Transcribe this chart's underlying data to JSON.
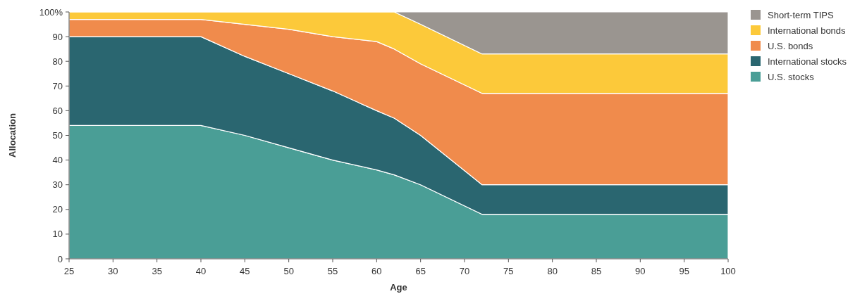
{
  "chart_data": {
    "type": "area",
    "stacked": true,
    "xlabel": "Age",
    "ylabel": "Allocation",
    "x": [
      25,
      40,
      45,
      50,
      55,
      60,
      62,
      65,
      72,
      100
    ],
    "series": [
      {
        "name": "U.S. stocks",
        "color": "#4a9e96",
        "values": [
          54,
          54,
          50,
          45,
          40,
          36,
          34,
          30,
          18,
          18
        ]
      },
      {
        "name": "International stocks",
        "color": "#2a6670",
        "values": [
          36,
          36,
          32,
          30,
          28,
          24,
          23,
          20,
          12,
          12
        ]
      },
      {
        "name": "U.S. bonds",
        "color": "#f08b4c",
        "values": [
          7,
          7,
          13,
          18,
          22,
          28,
          28,
          29,
          37,
          37
        ]
      },
      {
        "name": "International bonds",
        "color": "#fcc93a",
        "values": [
          3,
          3,
          5,
          7,
          10,
          12,
          15,
          16,
          16,
          16
        ]
      },
      {
        "name": "Short-term TIPS",
        "color": "#9a9590",
        "values": [
          0,
          0,
          0,
          0,
          0,
          0,
          0,
          5,
          17,
          17
        ]
      }
    ],
    "xlim": [
      25,
      100
    ],
    "xticks": [
      25,
      30,
      35,
      40,
      45,
      50,
      55,
      60,
      65,
      70,
      75,
      80,
      85,
      90,
      95,
      100
    ],
    "ylim": [
      0,
      100
    ],
    "yticks": [
      0,
      10,
      20,
      30,
      40,
      50,
      60,
      70,
      80,
      90,
      {
        "value": 100,
        "label": "100%"
      }
    ],
    "grid": false,
    "legend": "top right"
  }
}
